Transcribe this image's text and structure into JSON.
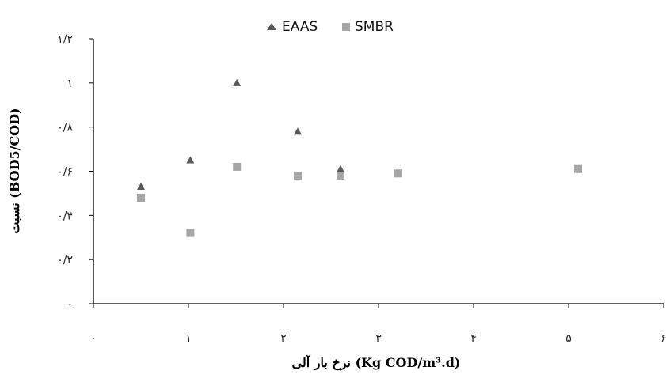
{
  "chart_data": {
    "type": "scatter",
    "title": "",
    "xlabel": "نرخ بار آلی (Kg COD/m³.d)",
    "ylabel": "نسبت (BOD5/COD)",
    "xlim": [
      0,
      6
    ],
    "ylim": [
      0,
      1.2
    ],
    "x_tick_labels": [
      "۰",
      "۱",
      "۲",
      "۳",
      "۴",
      "۵",
      "۶"
    ],
    "y_tick_labels": [
      "۰",
      "۰/۲",
      "۰/۴",
      "۰/۶",
      "۰/۸",
      "۱",
      "۱/۲"
    ],
    "x_ticks": [
      0,
      1,
      2,
      3,
      4,
      5,
      6
    ],
    "y_ticks": [
      0,
      0.2,
      0.4,
      0.6,
      0.8,
      1.0,
      1.2
    ],
    "grid": false,
    "legend_position": "top-center",
    "series": [
      {
        "name": "EAAS",
        "marker": "triangle",
        "color": "#595959",
        "points": [
          [
            0.5,
            0.53
          ],
          [
            1.02,
            0.65
          ],
          [
            1.51,
            1.0
          ],
          [
            2.15,
            0.78
          ],
          [
            2.6,
            0.61
          ]
        ]
      },
      {
        "name": "SMBR",
        "marker": "square",
        "color": "#A6A6A6",
        "points": [
          [
            0.5,
            0.48
          ],
          [
            1.02,
            0.32
          ],
          [
            1.51,
            0.62
          ],
          [
            2.15,
            0.58
          ],
          [
            2.6,
            0.58
          ],
          [
            3.2,
            0.59
          ],
          [
            5.1,
            0.61
          ]
        ]
      }
    ]
  }
}
